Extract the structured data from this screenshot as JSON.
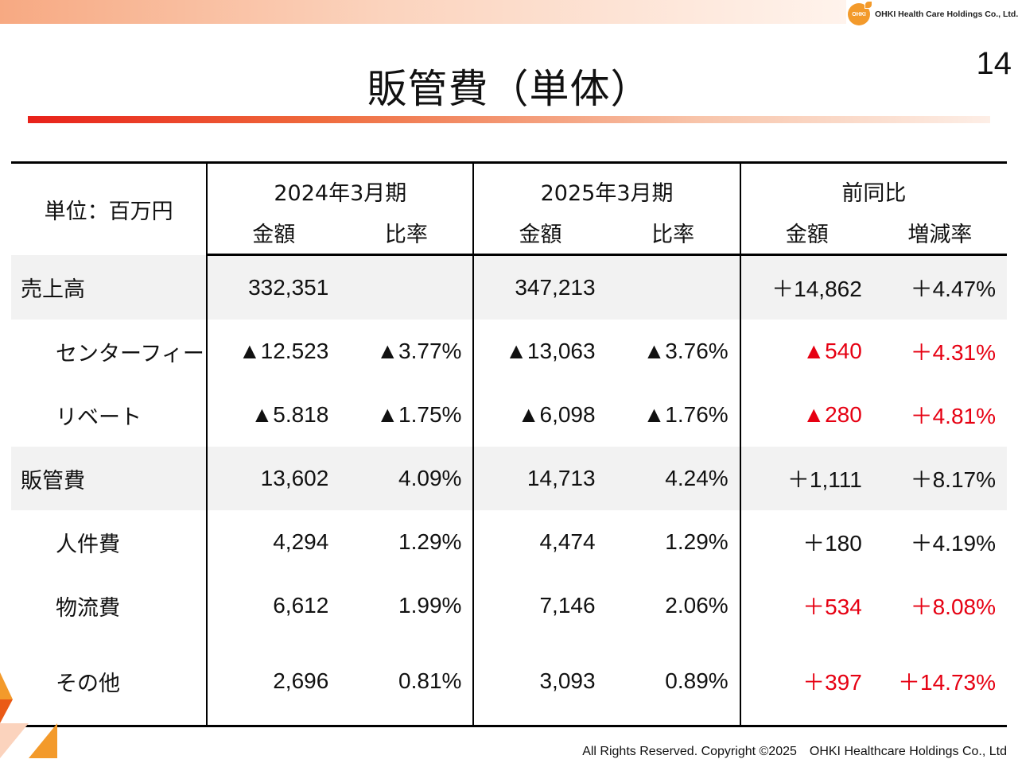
{
  "header": {
    "company": "OHKI Health Care Holdings Co., Ltd.",
    "logo_mark": "OHKI",
    "page_number": "14"
  },
  "title": "販管費（単体）",
  "table": {
    "unit": "単位：百万円",
    "groups": [
      "2024年3月期",
      "2025年3月期",
      "前同比"
    ],
    "subheaders": [
      "金額",
      "比率",
      "金額",
      "比率",
      "金額",
      "増減率"
    ],
    "rows": [
      {
        "label": "売上高",
        "cells": [
          "332,351",
          "",
          "347,213",
          "",
          "＋14,862",
          "＋4.47%"
        ]
      },
      {
        "label": "センターフィー",
        "cells": [
          "▲12.523",
          "▲3.77%",
          "▲13,063",
          "▲3.76%",
          "▲540",
          "＋4.31%"
        ]
      },
      {
        "label": "リベート",
        "cells": [
          "▲5.818",
          "▲1.75%",
          "▲6,098",
          "▲1.76%",
          "▲280",
          "＋4.81%"
        ]
      },
      {
        "label": "販管費",
        "cells": [
          "13,602",
          "4.09%",
          "14,713",
          "4.24%",
          "＋1,111",
          "＋8.17%"
        ]
      },
      {
        "label": "人件費",
        "cells": [
          "4,294",
          "1.29%",
          "4,474",
          "1.29%",
          "＋180",
          "＋4.19%"
        ]
      },
      {
        "label": "物流費",
        "cells": [
          "6,612",
          "1.99%",
          "7,146",
          "2.06%",
          "＋534",
          "＋8.08%"
        ]
      },
      {
        "label": "その他",
        "cells": [
          "2,696",
          "0.81%",
          "3,093",
          "0.89%",
          "＋397",
          "＋14.73%"
        ]
      }
    ]
  },
  "colors": {
    "accent_red": "#e60012",
    "brand_orange": "#f39a2b",
    "title_rule_red": "#e8211a",
    "row_shade": "#f2f2f2"
  },
  "footer": "All Rights Reserved. Copyright ©2025　OHKI Healthcare Holdings Co., Ltd"
}
